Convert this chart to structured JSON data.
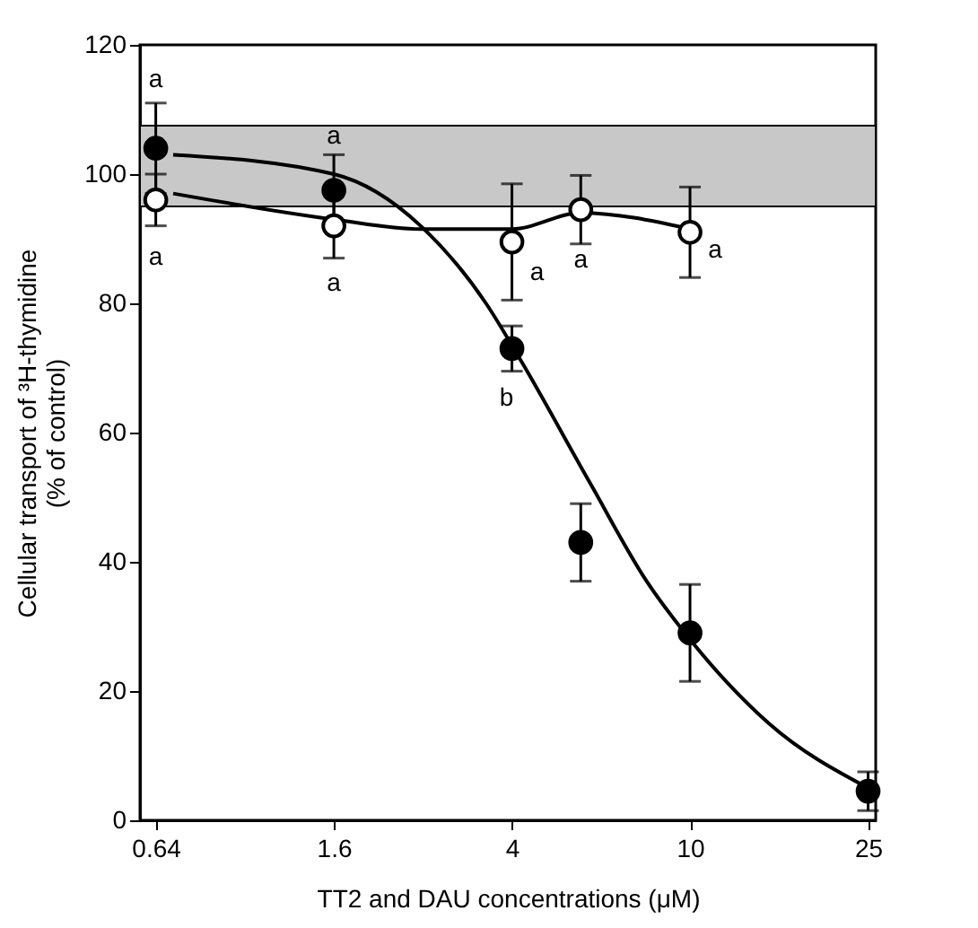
{
  "chart_data": {
    "type": "scatter",
    "xlabel": "TT2 and DAU concentrations (μM)",
    "ylabel": "Cellular transport of ³H-thymidine\n(% of control)",
    "log": "x",
    "grid": false,
    "marker": "circle",
    "xlim": [
      0.59,
      26
    ],
    "xticks": [
      0.64,
      1.6,
      4,
      10,
      25
    ],
    "ylim": [
      0,
      120
    ],
    "yticks": [
      0,
      20,
      40,
      60,
      80,
      100,
      120
    ],
    "series": [
      {
        "type": "line",
        "color": "#000000",
        "marker": "none",
        "x": [
          0.7,
          1.6,
          2.5,
          3.5,
          4.2,
          6,
          8,
          10,
          15,
          25
        ],
        "values": [
          103,
          100,
          92,
          80,
          71,
          52,
          37,
          28,
          15,
          5
        ]
      },
      {
        "type": "line",
        "color": "#000000",
        "marker": "none",
        "x": [
          0.7,
          1.6,
          2.5,
          4,
          5.7,
          10
        ],
        "values": [
          97,
          93,
          91.5,
          91.5,
          94,
          91.5
        ]
      },
      {
        "color": "#000000",
        "x": [
          0.64,
          1.6,
          4,
          5.7,
          10,
          25
        ],
        "values": [
          104,
          97.5,
          73,
          43,
          29,
          4.5
        ],
        "errors": [
          7,
          5.5,
          3.5,
          6,
          7.5,
          3
        ]
      },
      {
        "color": "#ffffff",
        "x": [
          0.64,
          1.6,
          4,
          5.7,
          10
        ],
        "values": [
          96,
          92,
          89.5,
          94.5,
          91
        ],
        "errors": [
          4,
          5,
          9,
          5.3,
          7
        ]
      }
    ],
    "bands": [
      {
        "axis": "y",
        "from": 95,
        "to": 107.5,
        "color": "#c8c8c8"
      }
    ],
    "annotations": [
      {
        "text": "a",
        "x": 0.64,
        "y": 104
      },
      {
        "text": "a",
        "x": 1.6,
        "y": 97.5
      },
      {
        "text": "b",
        "x": 4,
        "y": 73
      },
      {
        "text": "a",
        "x": 0.64,
        "y": 96
      },
      {
        "text": "a",
        "x": 1.6,
        "y": 92
      },
      {
        "text": "a",
        "x": 4,
        "y": 89.5
      },
      {
        "text": "a",
        "x": 5.7,
        "y": 94.5
      },
      {
        "text": "a",
        "x": 10,
        "y": 91
      }
    ]
  }
}
